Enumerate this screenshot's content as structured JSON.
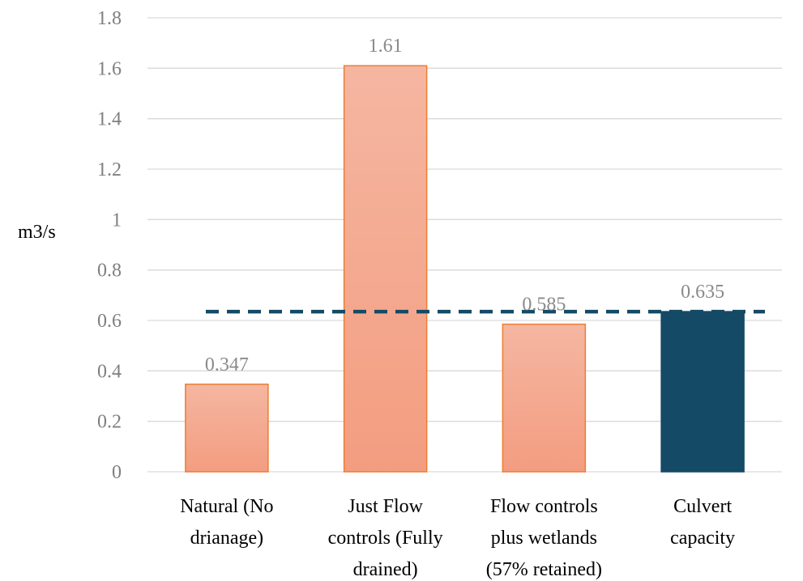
{
  "chart_data": {
    "type": "bar",
    "title": "",
    "xlabel": "",
    "ylabel": "m3/s",
    "ylim": [
      0,
      1.8
    ],
    "yticks": [
      "0",
      "0.2",
      "0.4",
      "0.6",
      "0.8",
      "1",
      "1.2",
      "1.4",
      "1.6",
      "1.8"
    ],
    "grid": true,
    "legend": "none",
    "categories": [
      [
        "Natural (No",
        "drianage)"
      ],
      [
        "Just Flow",
        "controls (Fully",
        "drained)"
      ],
      [
        "Flow controls",
        "plus wetlands",
        "(57% retained)"
      ],
      [
        "Culvert",
        "capacity"
      ]
    ],
    "values": [
      0.347,
      1.61,
      0.585,
      0.635
    ],
    "data_labels": [
      "0.347",
      "1.61",
      "0.585",
      "0.635"
    ],
    "bar_colors": [
      "#f4a88e",
      "#f4a88e",
      "#f4a88e",
      "#144a66"
    ],
    "reference_line": {
      "value": 0.635,
      "style": "dashed",
      "color": "#144a66"
    },
    "colors": {
      "bar_fill_top": "#f5b6a1",
      "bar_fill_bottom": "#f39d80",
      "bar_outline": "#ed7d31",
      "highlight_bar": "#144a66",
      "gridline": "#d9d9d9",
      "tick_text": "#7f7f7f",
      "data_label_text": "#8a8a8a"
    }
  }
}
